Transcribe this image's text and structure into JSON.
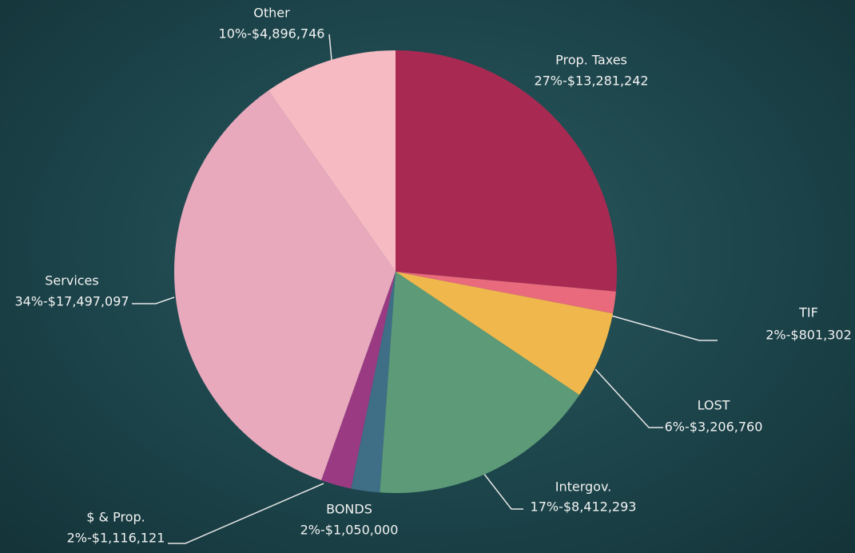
{
  "chart_data": {
    "type": "pie",
    "categories": [
      "Prop. Taxes",
      "TIF",
      "LOST",
      "Intergov.",
      "BONDS",
      "$ & Prop.",
      "Services",
      "Other"
    ],
    "values": [
      13281242,
      801302,
      3206760,
      8412293,
      1050000,
      1116121,
      17497097,
      4896746
    ],
    "value_labels": [
      "27%-$13,281,242",
      "2%-$801,302",
      "6%-$3,206,760",
      "17%-$8,412,293",
      "2%-$1,050,000",
      "2%-$1,116,121",
      "34%-$17,497,097",
      "10%-$4,896,746"
    ],
    "colors": [
      "#a82a52",
      "#e86a7c",
      "#f0b84c",
      "#5c9a78",
      "#3e6f86",
      "#9a3a82",
      "#e8a9bd",
      "#f6bac2"
    ]
  }
}
